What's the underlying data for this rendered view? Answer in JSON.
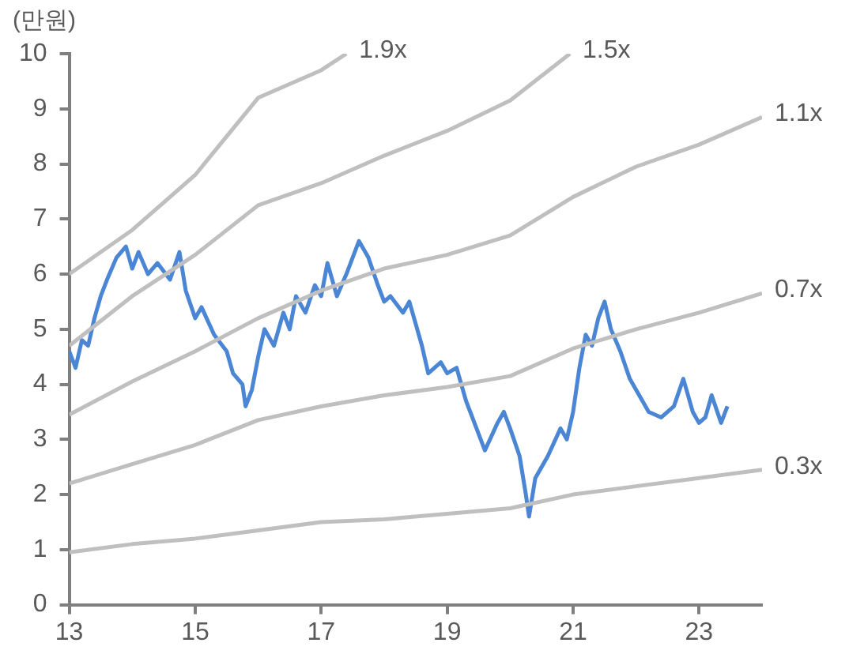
{
  "chart_data": {
    "type": "line",
    "ylabel": "(만원)",
    "xlim": [
      13,
      24
    ],
    "xticks": [
      13,
      15,
      17,
      19,
      21,
      23
    ],
    "ylim": [
      0,
      10
    ],
    "yticks": [
      0,
      1,
      2,
      3,
      4,
      5,
      6,
      7,
      8,
      9,
      10
    ],
    "grid": false,
    "legend": false,
    "marker": "none",
    "series": [
      {
        "name": "0.3x",
        "color": "#bfbfbf",
        "x": [
          13,
          14,
          15,
          16,
          17,
          18,
          19,
          20,
          21,
          22,
          23,
          24
        ],
        "values": [
          0.95,
          1.1,
          1.2,
          1.35,
          1.5,
          1.55,
          1.65,
          1.75,
          2.0,
          2.15,
          2.3,
          2.45
        ]
      },
      {
        "name": "0.7x",
        "color": "#bfbfbf",
        "x": [
          13,
          14,
          15,
          16,
          17,
          18,
          19,
          20,
          21,
          22,
          23,
          24
        ],
        "values": [
          2.2,
          2.55,
          2.9,
          3.35,
          3.6,
          3.8,
          3.95,
          4.15,
          4.65,
          5.0,
          5.3,
          5.65
        ]
      },
      {
        "name": "1.1x",
        "color": "#bfbfbf",
        "x": [
          13,
          14,
          15,
          16,
          17,
          18,
          19,
          20,
          21,
          22,
          23,
          24
        ],
        "values": [
          3.45,
          4.05,
          4.6,
          5.2,
          5.7,
          6.1,
          6.35,
          6.7,
          7.4,
          7.95,
          8.35,
          8.85
        ]
      },
      {
        "name": "1.5x",
        "color": "#bfbfbf",
        "x": [
          13,
          14,
          15,
          16,
          17,
          18,
          19,
          20,
          20.95
        ],
        "values": [
          4.7,
          5.6,
          6.35,
          7.25,
          7.65,
          8.15,
          8.6,
          9.15,
          10.0
        ]
      },
      {
        "name": "1.9x",
        "color": "#bfbfbf",
        "x": [
          13,
          14,
          15,
          16,
          17,
          17.4
        ],
        "values": [
          6.0,
          6.8,
          7.8,
          9.2,
          9.7,
          10.0
        ]
      },
      {
        "color": "#4a86d4",
        "x": [
          13.0,
          13.1,
          13.2,
          13.3,
          13.4,
          13.5,
          13.6,
          13.75,
          13.9,
          14.0,
          14.1,
          14.25,
          14.4,
          14.6,
          14.75,
          14.85,
          15.0,
          15.1,
          15.3,
          15.5,
          15.6,
          15.75,
          15.8,
          15.9,
          16.0,
          16.1,
          16.25,
          16.4,
          16.5,
          16.6,
          16.75,
          16.9,
          17.0,
          17.1,
          17.25,
          17.4,
          17.5,
          17.6,
          17.75,
          17.9,
          18.0,
          18.1,
          18.3,
          18.4,
          18.6,
          18.7,
          18.9,
          19.0,
          19.15,
          19.3,
          19.5,
          19.6,
          19.8,
          19.9,
          20.0,
          20.15,
          20.25,
          20.3,
          20.4,
          20.6,
          20.8,
          20.9,
          21.0,
          21.1,
          21.2,
          21.3,
          21.4,
          21.5,
          21.6,
          21.75,
          21.9,
          22.0,
          22.2,
          22.4,
          22.6,
          22.75,
          22.9,
          23.0,
          23.1,
          23.2,
          23.35,
          23.45
        ],
        "values": [
          4.6,
          4.3,
          4.8,
          4.7,
          5.2,
          5.6,
          5.9,
          6.3,
          6.5,
          6.1,
          6.4,
          6.0,
          6.2,
          5.9,
          6.4,
          5.7,
          5.2,
          5.4,
          4.9,
          4.6,
          4.2,
          4.0,
          3.6,
          3.9,
          4.5,
          5.0,
          4.7,
          5.3,
          5.0,
          5.6,
          5.3,
          5.8,
          5.6,
          6.2,
          5.6,
          6.0,
          6.3,
          6.6,
          6.3,
          5.8,
          5.5,
          5.6,
          5.3,
          5.5,
          4.7,
          4.2,
          4.4,
          4.2,
          4.3,
          3.7,
          3.1,
          2.8,
          3.3,
          3.5,
          3.2,
          2.7,
          2.0,
          1.6,
          2.3,
          2.7,
          3.2,
          3.0,
          3.5,
          4.3,
          4.9,
          4.7,
          5.2,
          5.5,
          5.0,
          4.6,
          4.1,
          3.9,
          3.5,
          3.4,
          3.6,
          4.1,
          3.5,
          3.3,
          3.4,
          3.8,
          3.3,
          3.6
        ]
      }
    ]
  }
}
